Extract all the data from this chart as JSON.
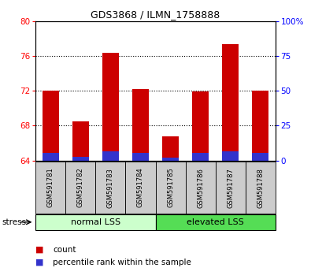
{
  "title": "GDS3868 / ILMN_1758888",
  "samples": [
    "GSM591781",
    "GSM591782",
    "GSM591783",
    "GSM591784",
    "GSM591785",
    "GSM591786",
    "GSM591787",
    "GSM591788"
  ],
  "count_values": [
    72.0,
    68.5,
    76.3,
    72.2,
    66.8,
    71.9,
    77.3,
    72.0
  ],
  "percentile_tops": [
    64.9,
    64.4,
    65.0,
    64.9,
    64.3,
    64.85,
    65.0,
    64.9
  ],
  "ylim_left": [
    64,
    80
  ],
  "ylim_right": [
    0,
    100
  ],
  "yticks_left": [
    64,
    68,
    72,
    76,
    80
  ],
  "yticks_right": [
    0,
    25,
    50,
    75,
    100
  ],
  "ytick_labels_right": [
    "0",
    "25",
    "50",
    "75",
    "100%"
  ],
  "bar_color_red": "#cc0000",
  "bar_color_blue": "#3333cc",
  "bar_width": 0.55,
  "group_labels": [
    "normal LSS",
    "elevated LSS"
  ],
  "group_ranges": [
    [
      0,
      3
    ],
    [
      4,
      7
    ]
  ],
  "group_color_light": "#ccffcc",
  "group_color_dark": "#55dd55",
  "stress_label": "stress",
  "legend_items": [
    "count",
    "percentile rank within the sample"
  ],
  "legend_colors": [
    "#cc0000",
    "#3333cc"
  ],
  "baseline": 64
}
